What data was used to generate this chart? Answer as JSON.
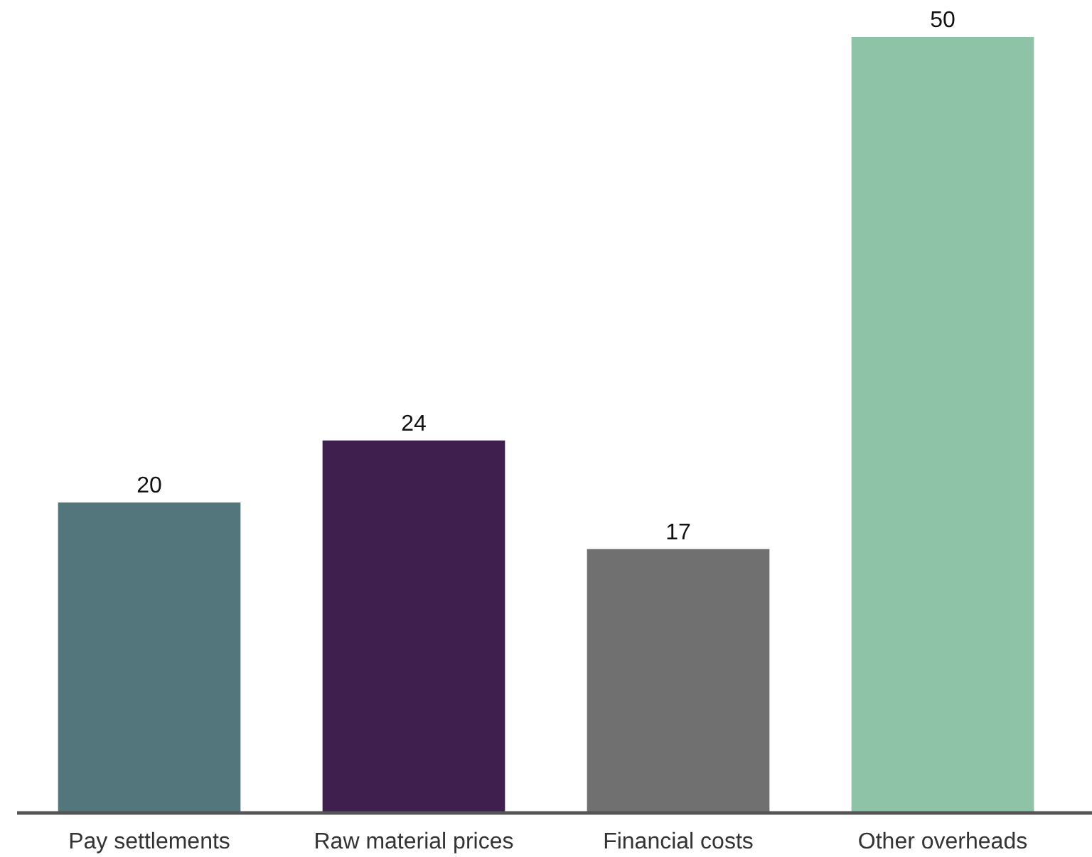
{
  "chart_data": {
    "type": "bar",
    "categories": [
      "Pay settlements",
      "Raw material prices",
      "Financial costs",
      "Other overheads"
    ],
    "values": [
      20,
      24,
      17,
      50
    ],
    "colors": [
      "#52767c",
      "#3f1f4d",
      "#6f706f",
      "#8ec3a7"
    ],
    "data_labels": true
  }
}
